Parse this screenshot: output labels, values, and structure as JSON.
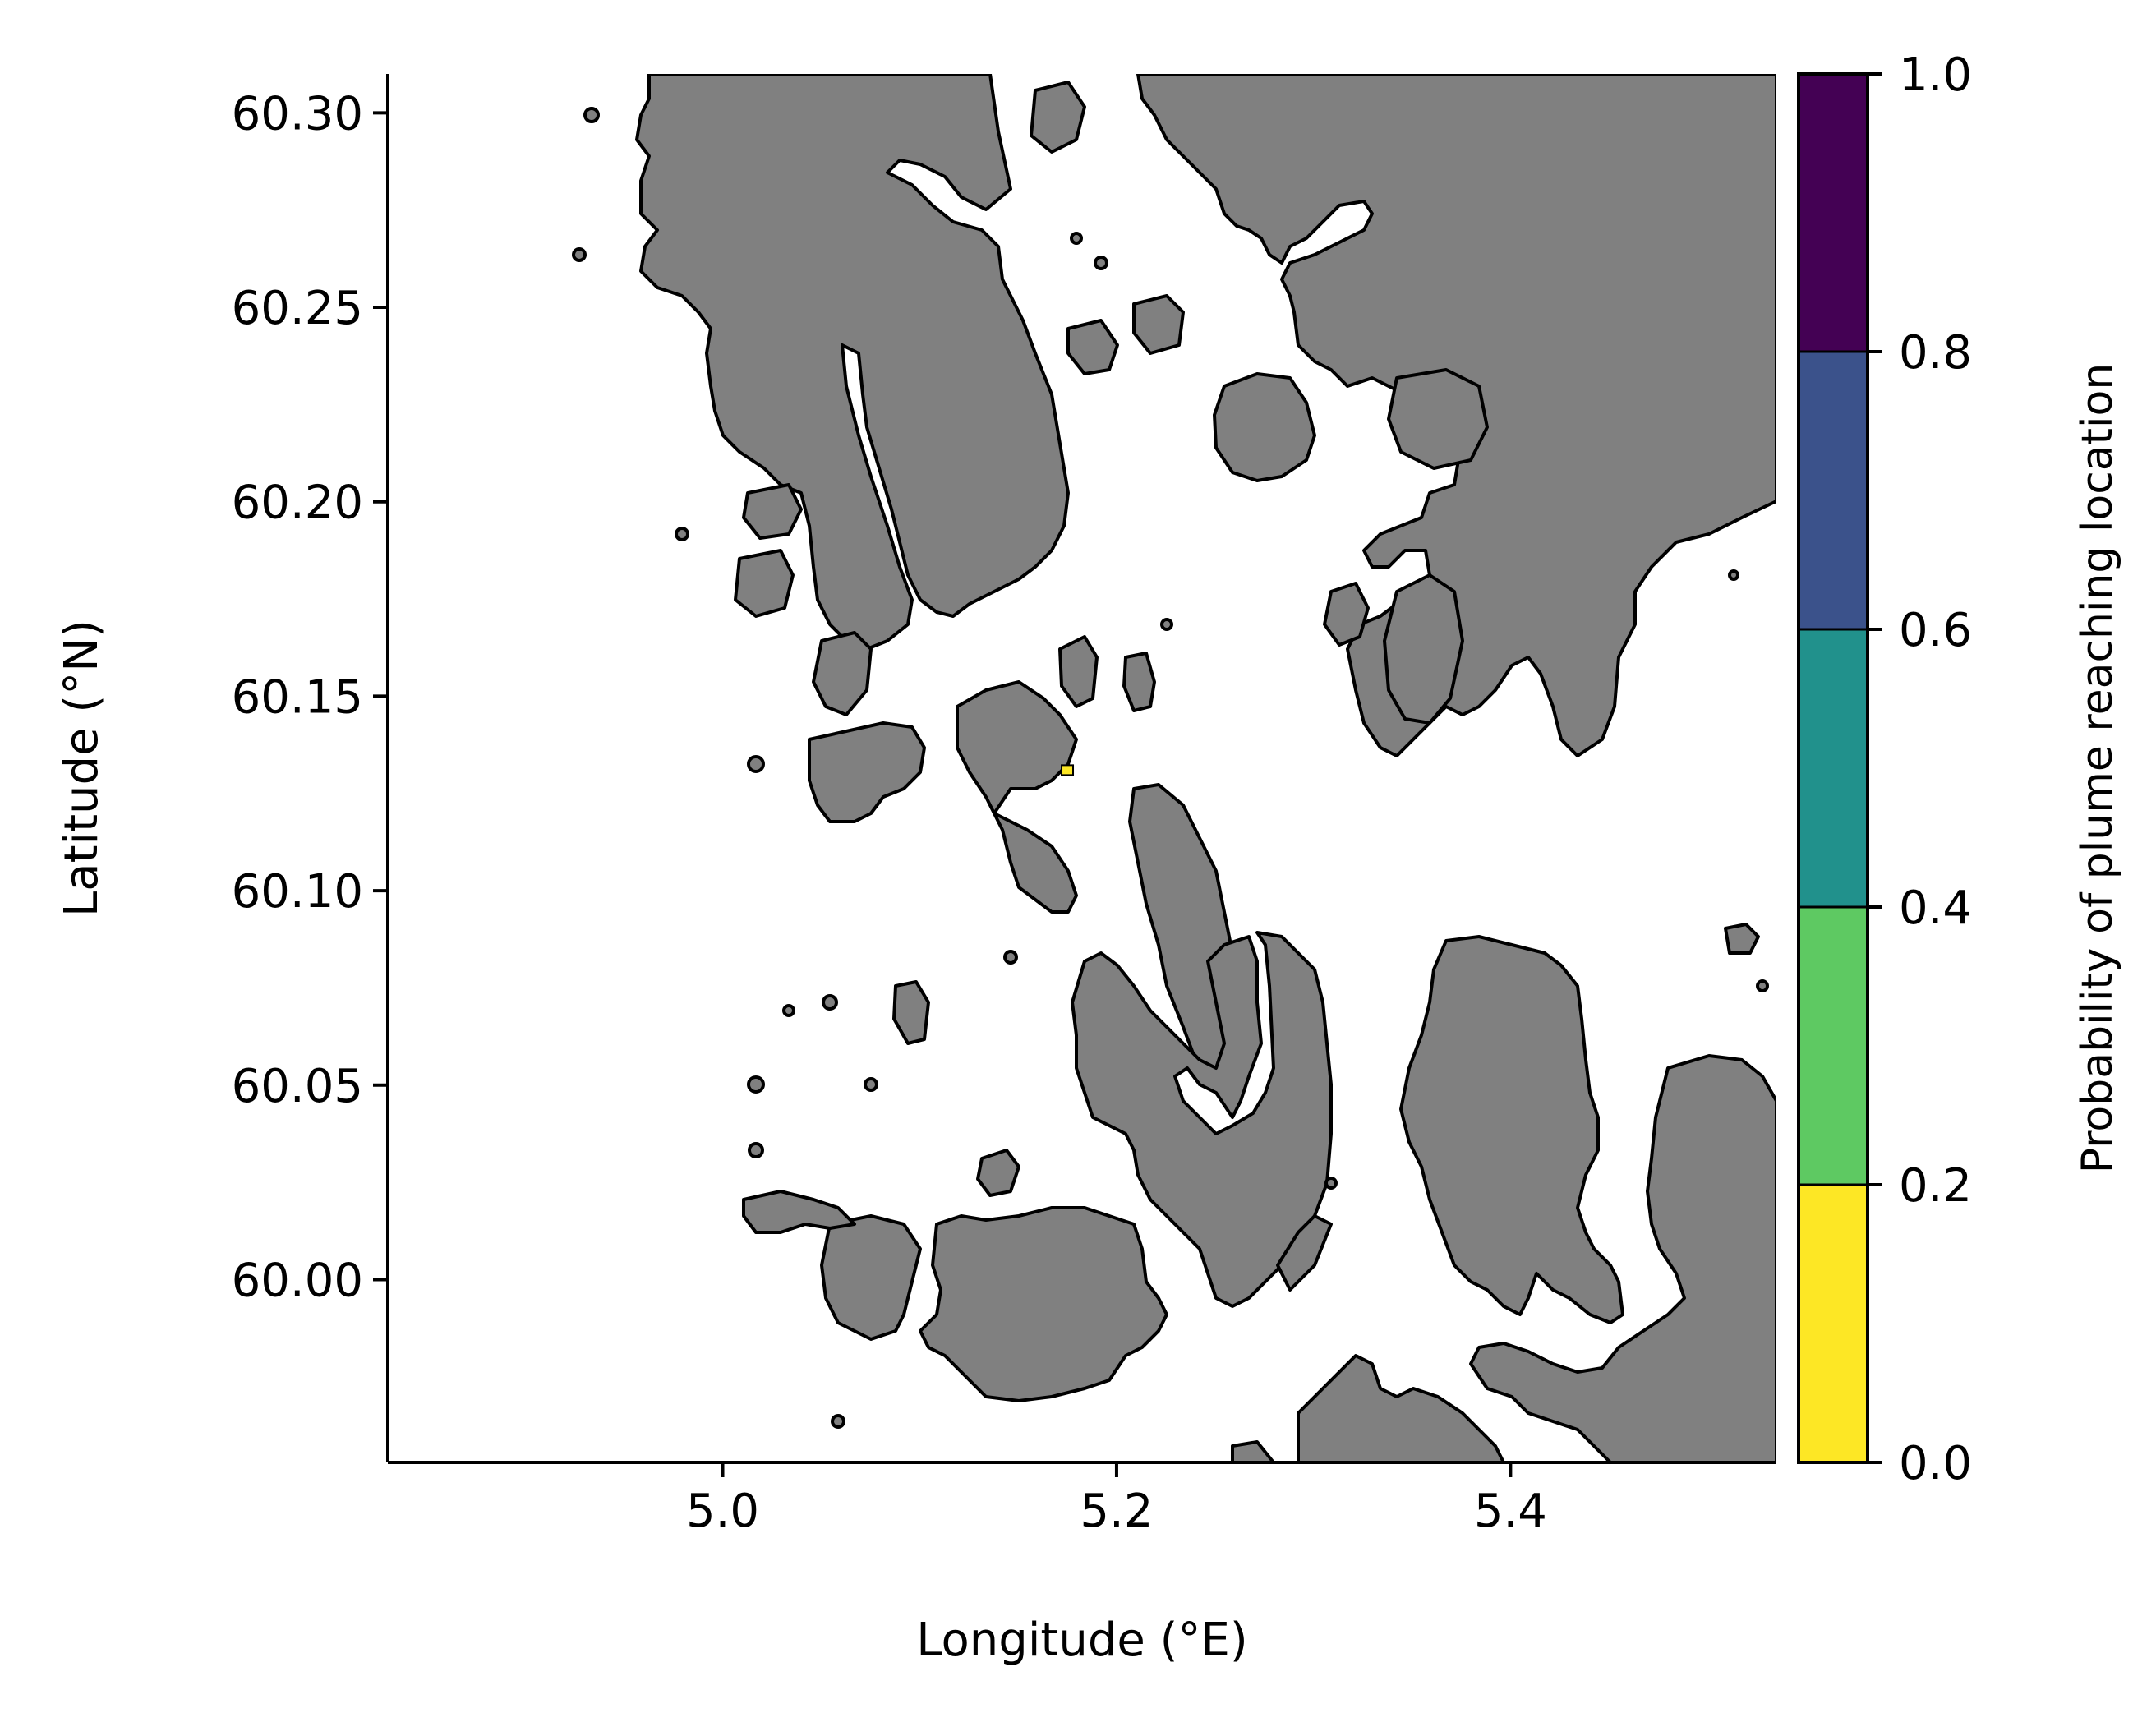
{
  "map": {
    "xlabel": "Longitude (°E)",
    "ylabel": "Latitude (°N)",
    "x_range": [
      4.83,
      5.535
    ],
    "y_range": [
      59.953,
      60.31
    ],
    "x_ticks": [
      {
        "value": 5.0,
        "label": "5.0"
      },
      {
        "value": 5.2,
        "label": "5.2"
      },
      {
        "value": 5.4,
        "label": "5.4"
      }
    ],
    "y_ticks": [
      {
        "value": 60.3,
        "label": "60.30"
      },
      {
        "value": 60.25,
        "label": "60.25"
      },
      {
        "value": 60.2,
        "label": "60.20"
      },
      {
        "value": 60.15,
        "label": "60.15"
      },
      {
        "value": 60.1,
        "label": "60.10"
      },
      {
        "value": 60.05,
        "label": "60.05"
      },
      {
        "value": 60.0,
        "label": "60.00"
      }
    ],
    "land_color": "#808080",
    "coast_color": "#000000",
    "release_point": {
      "lon": 5.175,
      "lat": 60.131,
      "color": "#fde725"
    }
  },
  "colorbar": {
    "label": "Probability of plume reaching location",
    "range": [
      0.0,
      1.0
    ],
    "ticks": [
      {
        "value": 0.0,
        "label": "0.0"
      },
      {
        "value": 0.2,
        "label": "0.2"
      },
      {
        "value": 0.4,
        "label": "0.4"
      },
      {
        "value": 0.6,
        "label": "0.6"
      },
      {
        "value": 0.8,
        "label": "0.8"
      },
      {
        "value": 1.0,
        "label": "1.0"
      }
    ],
    "bins": [
      {
        "from": 0.0,
        "to": 0.2,
        "color": "#fde725"
      },
      {
        "from": 0.2,
        "to": 0.4,
        "color": "#5ec962"
      },
      {
        "from": 0.4,
        "to": 0.6,
        "color": "#21918c"
      },
      {
        "from": 0.6,
        "to": 0.8,
        "color": "#3b528b"
      },
      {
        "from": 0.8,
        "to": 1.0,
        "color": "#440154"
      }
    ]
  }
}
